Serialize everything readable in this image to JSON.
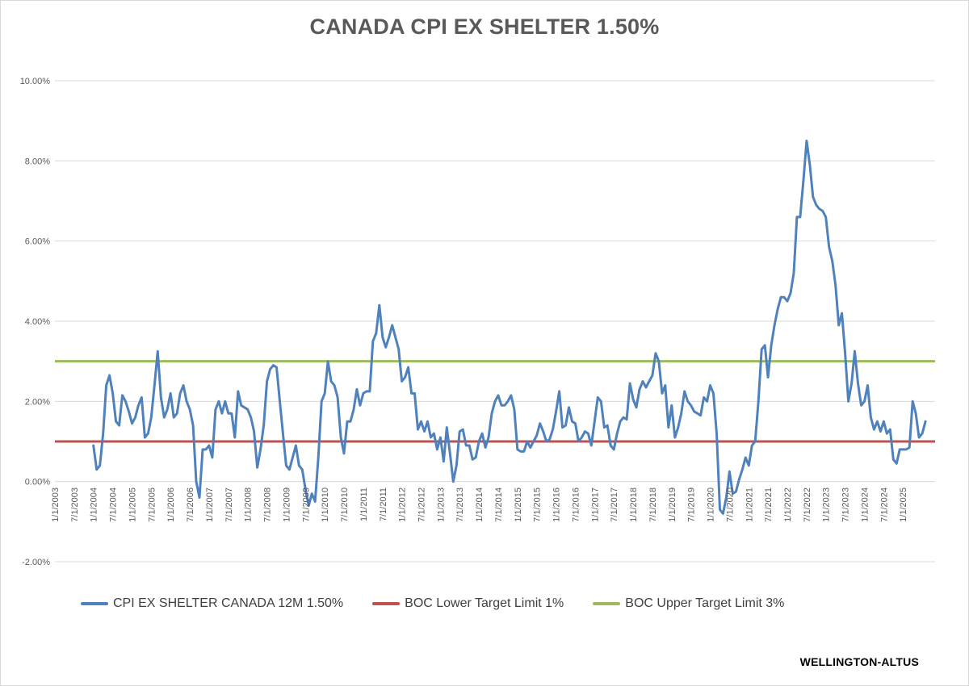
{
  "chart_data": {
    "type": "line",
    "title": "CANADA CPI EX SHELTER 1.50%",
    "xlabel": "",
    "ylabel": "",
    "y_axis": {
      "ylim": [
        -0.02,
        0.1
      ],
      "ticks": [
        {
          "value": 0.1,
          "label": "10.00%"
        },
        {
          "value": 0.08,
          "label": "8.00%"
        },
        {
          "value": 0.06,
          "label": "6.00%"
        },
        {
          "value": 0.04,
          "label": "4.00%"
        },
        {
          "value": 0.02,
          "label": "2.00%"
        },
        {
          "value": 0.0,
          "label": "0.00%"
        },
        {
          "value": -0.02,
          "label": "-2.00%"
        }
      ]
    },
    "x_axis": {
      "range": [
        "2003-01",
        "2025-11"
      ],
      "tick_labels": [
        "1/1/2003",
        "7/1/2003",
        "1/1/2004",
        "7/1/2004",
        "1/1/2005",
        "7/1/2005",
        "1/1/2006",
        "7/1/2006",
        "1/1/2007",
        "7/1/2007",
        "1/1/2008",
        "7/1/2008",
        "1/1/2009",
        "7/1/2009",
        "1/1/2010",
        "7/1/2010",
        "1/1/2011",
        "7/1/2011",
        "1/1/2012",
        "7/1/2012",
        "1/1/2013",
        "7/1/2013",
        "1/1/2014",
        "7/1/2014",
        "1/1/2015",
        "7/1/2015",
        "1/1/2016",
        "7/1/2016",
        "1/1/2017",
        "7/1/2017",
        "1/1/2018",
        "7/1/2018",
        "1/1/2019",
        "7/1/2019",
        "1/1/2020",
        "7/1/2020",
        "1/1/2021",
        "7/1/2021",
        "1/1/2022",
        "7/1/2022",
        "1/1/2023",
        "7/1/2023",
        "1/1/2024",
        "7/1/2024",
        "1/1/2025"
      ]
    },
    "grid": "horizontal",
    "legend_position": "bottom",
    "series": [
      {
        "name": "CPI EX SHELTER CANADA 12M 1.50%",
        "color": "#4f81bd",
        "points": [
          [
            "2004-01",
            0.009
          ],
          [
            "2004-02",
            0.003
          ],
          [
            "2004-03",
            0.004
          ],
          [
            "2004-04",
            0.012
          ],
          [
            "2004-05",
            0.024
          ],
          [
            "2004-06",
            0.0265
          ],
          [
            "2004-07",
            0.022
          ],
          [
            "2004-08",
            0.015
          ],
          [
            "2004-09",
            0.014
          ],
          [
            "2004-10",
            0.0215
          ],
          [
            "2004-11",
            0.02
          ],
          [
            "2004-12",
            0.0175
          ],
          [
            "2005-01",
            0.0145
          ],
          [
            "2005-02",
            0.016
          ],
          [
            "2005-03",
            0.019
          ],
          [
            "2005-04",
            0.021
          ],
          [
            "2005-05",
            0.011
          ],
          [
            "2005-06",
            0.012
          ],
          [
            "2005-07",
            0.016
          ],
          [
            "2005-08",
            0.024
          ],
          [
            "2005-09",
            0.0325
          ],
          [
            "2005-10",
            0.021
          ],
          [
            "2005-11",
            0.016
          ],
          [
            "2005-12",
            0.018
          ],
          [
            "2006-01",
            0.022
          ],
          [
            "2006-02",
            0.016
          ],
          [
            "2006-03",
            0.017
          ],
          [
            "2006-04",
            0.022
          ],
          [
            "2006-05",
            0.024
          ],
          [
            "2006-06",
            0.02
          ],
          [
            "2006-07",
            0.018
          ],
          [
            "2006-08",
            0.014
          ],
          [
            "2006-09",
            0.0
          ],
          [
            "2006-10",
            -0.004
          ],
          [
            "2006-11",
            0.008
          ],
          [
            "2006-12",
            0.008
          ],
          [
            "2007-01",
            0.009
          ],
          [
            "2007-02",
            0.006
          ],
          [
            "2007-03",
            0.018
          ],
          [
            "2007-04",
            0.02
          ],
          [
            "2007-05",
            0.017
          ],
          [
            "2007-06",
            0.02
          ],
          [
            "2007-07",
            0.017
          ],
          [
            "2007-08",
            0.017
          ],
          [
            "2007-09",
            0.011
          ],
          [
            "2007-10",
            0.0225
          ],
          [
            "2007-11",
            0.019
          ],
          [
            "2007-12",
            0.0185
          ],
          [
            "2008-01",
            0.018
          ],
          [
            "2008-02",
            0.016
          ],
          [
            "2008-03",
            0.0125
          ],
          [
            "2008-04",
            0.0035
          ],
          [
            "2008-05",
            0.008
          ],
          [
            "2008-06",
            0.014
          ],
          [
            "2008-07",
            0.025
          ],
          [
            "2008-08",
            0.028
          ],
          [
            "2008-09",
            0.029
          ],
          [
            "2008-10",
            0.0285
          ],
          [
            "2008-11",
            0.02
          ],
          [
            "2008-12",
            0.012
          ],
          [
            "2009-01",
            0.004
          ],
          [
            "2009-02",
            0.003
          ],
          [
            "2009-03",
            0.006
          ],
          [
            "2009-04",
            0.009
          ],
          [
            "2009-05",
            0.004
          ],
          [
            "2009-06",
            0.003
          ],
          [
            "2009-07",
            -0.002
          ],
          [
            "2009-08",
            -0.006
          ],
          [
            "2009-09",
            -0.003
          ],
          [
            "2009-10",
            -0.005
          ],
          [
            "2009-11",
            0.006
          ],
          [
            "2009-12",
            0.02
          ],
          [
            "2010-01",
            0.022
          ],
          [
            "2010-02",
            0.03
          ],
          [
            "2010-03",
            0.025
          ],
          [
            "2010-04",
            0.024
          ],
          [
            "2010-05",
            0.021
          ],
          [
            "2010-06",
            0.011
          ],
          [
            "2010-07",
            0.007
          ],
          [
            "2010-08",
            0.015
          ],
          [
            "2010-09",
            0.015
          ],
          [
            "2010-10",
            0.018
          ],
          [
            "2010-11",
            0.023
          ],
          [
            "2010-12",
            0.019
          ],
          [
            "2011-01",
            0.022
          ],
          [
            "2011-02",
            0.0225
          ],
          [
            "2011-03",
            0.0225
          ],
          [
            "2011-04",
            0.035
          ],
          [
            "2011-05",
            0.037
          ],
          [
            "2011-06",
            0.044
          ],
          [
            "2011-07",
            0.036
          ],
          [
            "2011-08",
            0.0335
          ],
          [
            "2011-09",
            0.036
          ],
          [
            "2011-10",
            0.039
          ],
          [
            "2011-11",
            0.036
          ],
          [
            "2011-12",
            0.033
          ],
          [
            "2012-01",
            0.025
          ],
          [
            "2012-02",
            0.026
          ],
          [
            "2012-03",
            0.0285
          ],
          [
            "2012-04",
            0.022
          ],
          [
            "2012-05",
            0.022
          ],
          [
            "2012-06",
            0.013
          ],
          [
            "2012-07",
            0.015
          ],
          [
            "2012-08",
            0.0125
          ],
          [
            "2012-09",
            0.015
          ],
          [
            "2012-10",
            0.011
          ],
          [
            "2012-11",
            0.012
          ],
          [
            "2012-12",
            0.008
          ],
          [
            "2013-01",
            0.011
          ],
          [
            "2013-02",
            0.005
          ],
          [
            "2013-03",
            0.0135
          ],
          [
            "2013-04",
            0.007
          ],
          [
            "2013-05",
            0.0
          ],
          [
            "2013-06",
            0.004
          ],
          [
            "2013-07",
            0.0125
          ],
          [
            "2013-08",
            0.013
          ],
          [
            "2013-09",
            0.009
          ],
          [
            "2013-10",
            0.009
          ],
          [
            "2013-11",
            0.0055
          ],
          [
            "2013-12",
            0.006
          ],
          [
            "2014-01",
            0.01
          ],
          [
            "2014-02",
            0.012
          ],
          [
            "2014-03",
            0.0085
          ],
          [
            "2014-04",
            0.011
          ],
          [
            "2014-05",
            0.017
          ],
          [
            "2014-06",
            0.02
          ],
          [
            "2014-07",
            0.0215
          ],
          [
            "2014-08",
            0.019
          ],
          [
            "2014-09",
            0.019
          ],
          [
            "2014-10",
            0.02
          ],
          [
            "2014-11",
            0.0215
          ],
          [
            "2014-12",
            0.018
          ],
          [
            "2015-01",
            0.008
          ],
          [
            "2015-02",
            0.0075
          ],
          [
            "2015-03",
            0.0075
          ],
          [
            "2015-04",
            0.01
          ],
          [
            "2015-05",
            0.0085
          ],
          [
            "2015-06",
            0.01
          ],
          [
            "2015-07",
            0.0115
          ],
          [
            "2015-08",
            0.0145
          ],
          [
            "2015-09",
            0.0125
          ],
          [
            "2015-10",
            0.01
          ],
          [
            "2015-11",
            0.0105
          ],
          [
            "2015-12",
            0.013
          ],
          [
            "2016-01",
            0.0175
          ],
          [
            "2016-02",
            0.0225
          ],
          [
            "2016-03",
            0.0135
          ],
          [
            "2016-04",
            0.014
          ],
          [
            "2016-05",
            0.0185
          ],
          [
            "2016-06",
            0.015
          ],
          [
            "2016-07",
            0.0145
          ],
          [
            "2016-08",
            0.01
          ],
          [
            "2016-09",
            0.011
          ],
          [
            "2016-10",
            0.0125
          ],
          [
            "2016-11",
            0.012
          ],
          [
            "2016-12",
            0.009
          ],
          [
            "2017-01",
            0.015
          ],
          [
            "2017-02",
            0.021
          ],
          [
            "2017-03",
            0.02
          ],
          [
            "2017-04",
            0.0135
          ],
          [
            "2017-05",
            0.014
          ],
          [
            "2017-06",
            0.009
          ],
          [
            "2017-07",
            0.008
          ],
          [
            "2017-08",
            0.012
          ],
          [
            "2017-09",
            0.015
          ],
          [
            "2017-10",
            0.016
          ],
          [
            "2017-11",
            0.0155
          ],
          [
            "2017-12",
            0.0245
          ],
          [
            "2018-01",
            0.0205
          ],
          [
            "2018-02",
            0.0185
          ],
          [
            "2018-03",
            0.023
          ],
          [
            "2018-04",
            0.025
          ],
          [
            "2018-05",
            0.0235
          ],
          [
            "2018-06",
            0.025
          ],
          [
            "2018-07",
            0.0265
          ],
          [
            "2018-08",
            0.032
          ],
          [
            "2018-09",
            0.03
          ],
          [
            "2018-10",
            0.022
          ],
          [
            "2018-11",
            0.024
          ],
          [
            "2018-12",
            0.0135
          ],
          [
            "2019-01",
            0.019
          ],
          [
            "2019-02",
            0.011
          ],
          [
            "2019-03",
            0.0135
          ],
          [
            "2019-04",
            0.017
          ],
          [
            "2019-05",
            0.0225
          ],
          [
            "2019-06",
            0.02
          ],
          [
            "2019-07",
            0.019
          ],
          [
            "2019-08",
            0.0175
          ],
          [
            "2019-09",
            0.017
          ],
          [
            "2019-10",
            0.0165
          ],
          [
            "2019-11",
            0.021
          ],
          [
            "2019-12",
            0.02
          ],
          [
            "2020-01",
            0.024
          ],
          [
            "2020-02",
            0.022
          ],
          [
            "2020-03",
            0.012
          ],
          [
            "2020-04",
            -0.007
          ],
          [
            "2020-05",
            -0.008
          ],
          [
            "2020-06",
            -0.004
          ],
          [
            "2020-07",
            0.0025
          ],
          [
            "2020-08",
            -0.003
          ],
          [
            "2020-09",
            -0.0025
          ],
          [
            "2020-10",
            0.0005
          ],
          [
            "2020-11",
            0.003
          ],
          [
            "2020-12",
            0.006
          ],
          [
            "2021-01",
            0.004
          ],
          [
            "2021-02",
            0.009
          ],
          [
            "2021-03",
            0.01
          ],
          [
            "2021-04",
            0.02
          ],
          [
            "2021-05",
            0.033
          ],
          [
            "2021-06",
            0.034
          ],
          [
            "2021-07",
            0.026
          ],
          [
            "2021-08",
            0.034
          ],
          [
            "2021-09",
            0.039
          ],
          [
            "2021-10",
            0.043
          ],
          [
            "2021-11",
            0.046
          ],
          [
            "2021-12",
            0.046
          ],
          [
            "2022-01",
            0.045
          ],
          [
            "2022-02",
            0.047
          ],
          [
            "2022-03",
            0.052
          ],
          [
            "2022-04",
            0.066
          ],
          [
            "2022-05",
            0.066
          ],
          [
            "2022-06",
            0.075
          ],
          [
            "2022-07",
            0.085
          ],
          [
            "2022-08",
            0.079
          ],
          [
            "2022-09",
            0.071
          ],
          [
            "2022-10",
            0.069
          ],
          [
            "2022-11",
            0.068
          ],
          [
            "2022-12",
            0.0675
          ],
          [
            "2023-01",
            0.066
          ],
          [
            "2023-02",
            0.0585
          ],
          [
            "2023-03",
            0.055
          ],
          [
            "2023-04",
            0.049
          ],
          [
            "2023-05",
            0.039
          ],
          [
            "2023-06",
            0.042
          ],
          [
            "2023-07",
            0.032
          ],
          [
            "2023-08",
            0.02
          ],
          [
            "2023-09",
            0.0245
          ],
          [
            "2023-10",
            0.0325
          ],
          [
            "2023-11",
            0.0245
          ],
          [
            "2023-12",
            0.019
          ],
          [
            "2024-01",
            0.02
          ],
          [
            "2024-02",
            0.024
          ],
          [
            "2024-03",
            0.016
          ],
          [
            "2024-04",
            0.013
          ],
          [
            "2024-05",
            0.015
          ],
          [
            "2024-06",
            0.0125
          ],
          [
            "2024-07",
            0.015
          ],
          [
            "2024-08",
            0.012
          ],
          [
            "2024-09",
            0.013
          ],
          [
            "2024-10",
            0.0055
          ],
          [
            "2024-11",
            0.0045
          ],
          [
            "2024-12",
            0.008
          ],
          [
            "2025-01",
            0.008
          ],
          [
            "2025-02",
            0.008
          ],
          [
            "2025-03",
            0.0085
          ],
          [
            "2025-04",
            0.02
          ],
          [
            "2025-05",
            0.017
          ],
          [
            "2025-06",
            0.011
          ],
          [
            "2025-07",
            0.012
          ],
          [
            "2025-08",
            0.015
          ]
        ]
      },
      {
        "name": "BOC Lower Target Limit 1%",
        "color": "#c0504d",
        "points": [
          [
            "2003-01",
            0.01
          ],
          [
            "2025-11",
            0.01
          ]
        ]
      },
      {
        "name": "BOC Upper Target Limit 3%",
        "color": "#9bbb59",
        "points": [
          [
            "2003-01",
            0.03
          ],
          [
            "2025-11",
            0.03
          ]
        ]
      }
    ]
  },
  "source_credit": "WELLINGTON-ALTUS"
}
